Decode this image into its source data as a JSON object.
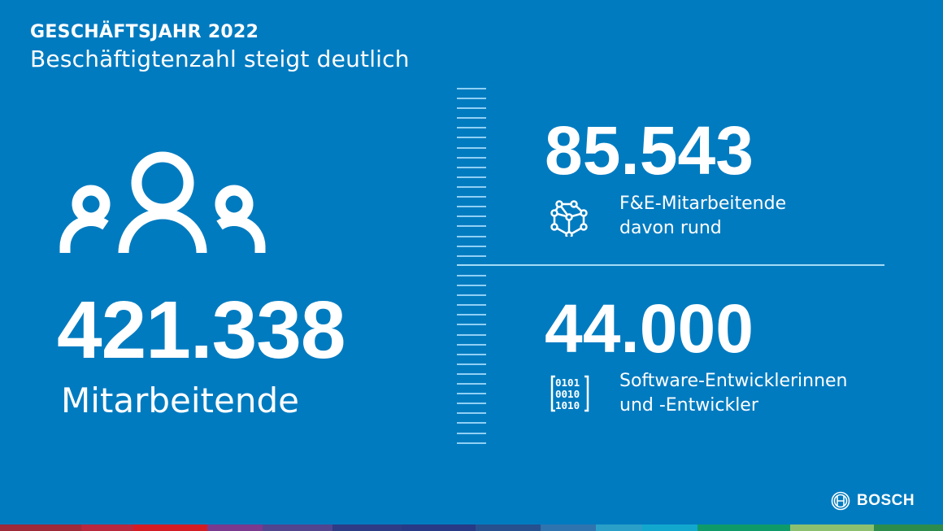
{
  "header": {
    "kicker": "GESCHÄFTSJAHR 2022",
    "title": "Beschäftigtenzahl steigt deutlich"
  },
  "employees": {
    "icon": "people-group-icon",
    "value": "421.338",
    "label": "Mitarbeitende"
  },
  "research": {
    "icon": "cube-network-icon",
    "value": "85.543",
    "label_line1": "F&E-Mitarbeitende",
    "label_line2": "davon rund"
  },
  "software": {
    "icon": "binary-code-icon",
    "value": "44.000",
    "label_line1": "Software-Entwicklerinnen",
    "label_line2": "und -Entwickler"
  },
  "brand": {
    "name": "BOSCH",
    "logo_icon": "bosch-armature-icon",
    "background_color": "#007BC0",
    "tick_color": "#8FD0F5",
    "stripe_colors": [
      "#9E2A3A",
      "#B8283E",
      "#D41C24",
      "#7A3A8E",
      "#51458F",
      "#2E3C86",
      "#283A85",
      "#27508F",
      "#2F74AF",
      "#2AA0C8",
      "#12A8CE",
      "#0F9A6A",
      "#8CC070",
      "#2C8C4C"
    ]
  }
}
